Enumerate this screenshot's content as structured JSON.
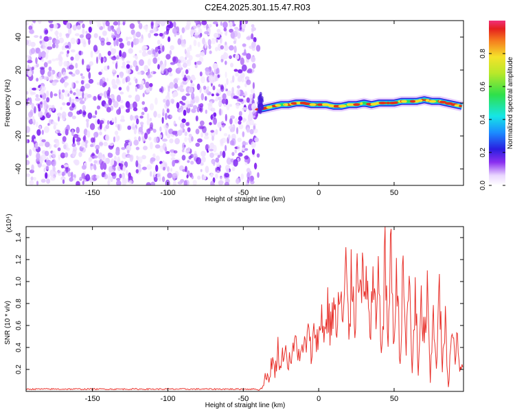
{
  "title": "C2E4.2025.301.15.47.R03",
  "colors": {
    "axis": "#000000",
    "snr_line": "#e8302a",
    "noise_purple": "#7a1df0",
    "signal_red": "#e0321e"
  },
  "chart_data": [
    {
      "type": "heatmap",
      "name": "spectrogram",
      "xlabel": "Height of straight line (km)",
      "ylabel": "Frequency (Hz)",
      "xlim": [
        -194,
        96
      ],
      "ylim": [
        -50,
        50
      ],
      "xticks": [
        -150,
        -100,
        -50,
        0,
        50
      ],
      "yticks": [
        -40,
        -20,
        0,
        20,
        40
      ],
      "noise_region": {
        "x_from": -194,
        "x_to": -40
      },
      "signal_trace": {
        "x": [
          -40,
          -35,
          -30,
          -25,
          -20,
          -15,
          -10,
          -5,
          0,
          5,
          10,
          15,
          20,
          25,
          30,
          35,
          40,
          45,
          50,
          55,
          60,
          65,
          70,
          75,
          80,
          85,
          90,
          95
        ],
        "freq": [
          -4,
          -3,
          -2,
          -1,
          -1,
          0,
          0,
          -1,
          -1,
          -1,
          -2,
          -2,
          -1,
          -1,
          0,
          -1,
          0,
          0,
          0,
          1,
          1,
          1,
          2,
          1,
          1,
          0,
          -1,
          -2
        ]
      }
    },
    {
      "type": "colorbar",
      "name": "amplitude-colorbar",
      "label": "Normalized spectral amplitude",
      "range": [
        0,
        1
      ],
      "ticks": [
        "0.0",
        "0.2",
        "0.4",
        "0.6",
        "0.8"
      ]
    },
    {
      "type": "line",
      "name": "snr",
      "xlabel": "Height of straight line (km)",
      "ylabel": "SNR (10 * v/v)",
      "y_multiplier_label": "(x10⁴)",
      "xlim": [
        -194,
        96
      ],
      "ylim": [
        0,
        1.5
      ],
      "xticks": [
        -150,
        -100,
        -50,
        0,
        50
      ],
      "yticks": [
        0.2,
        0.4,
        0.6,
        0.8,
        1.0,
        1.2,
        1.4
      ],
      "series": [
        {
          "name": "SNR",
          "x": [
            -194,
            -40,
            -37,
            -35,
            -33,
            -31,
            -29,
            -27,
            -25,
            -23,
            -20,
            -17,
            -15,
            -12,
            -10,
            -7,
            -5,
            -2,
            0,
            2,
            4,
            6,
            8,
            10,
            12,
            14,
            16,
            18,
            20,
            22,
            24,
            26,
            28,
            30,
            32,
            34,
            36,
            38,
            40,
            42,
            44,
            46,
            48,
            50,
            52,
            54,
            56,
            58,
            60,
            62,
            64,
            66,
            68,
            70,
            72,
            74,
            76,
            78,
            80,
            82,
            84,
            86,
            88,
            90,
            92,
            94,
            96
          ],
          "values": [
            0.01,
            0.01,
            0.05,
            0.2,
            0.1,
            0.35,
            0.2,
            0.45,
            0.25,
            0.5,
            0.3,
            0.4,
            0.55,
            0.35,
            0.45,
            0.6,
            0.4,
            0.7,
            0.5,
            0.85,
            0.6,
            0.9,
            0.65,
            1.0,
            0.55,
            1.1,
            0.7,
            1.25,
            0.6,
            1.3,
            0.8,
            1.35,
            1.5,
            0.9,
            1.3,
            0.5,
            1.1,
            0.7,
            1.2,
            0.4,
            1.4,
            0.6,
            1.5,
            0.5,
            1.3,
            0.3,
            1.25,
            0.45,
            1.2,
            0.2,
            1.1,
            0.15,
            0.9,
            0.55,
            1.0,
            0.1,
            0.85,
            0.3,
            1.05,
            0.25,
            0.7,
            0.05,
            0.6,
            0.4,
            0.5,
            0.2,
            0.3
          ]
        }
      ]
    }
  ]
}
